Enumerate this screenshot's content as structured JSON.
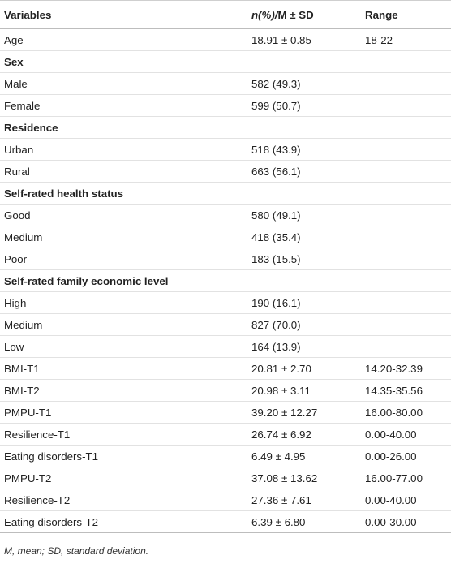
{
  "table": {
    "header": [
      "Variables",
      "n(%)/M ± SD",
      "Range"
    ],
    "rows": [
      {
        "cells": [
          "Age",
          "18.91 ± 0.85",
          "18-22"
        ]
      },
      {
        "cells": [
          "Sex"
        ],
        "section": true
      },
      {
        "cells": [
          "Male",
          "582 (49.3)"
        ]
      },
      {
        "cells": [
          "Female",
          "599 (50.7)"
        ]
      },
      {
        "cells": [
          "Residence"
        ],
        "section": true
      },
      {
        "cells": [
          "Urban",
          "518 (43.9)"
        ]
      },
      {
        "cells": [
          "Rural",
          "663 (56.1)"
        ]
      },
      {
        "cells": [
          "Self-rated health status"
        ],
        "section": true
      },
      {
        "cells": [
          "Good",
          "580 (49.1)"
        ]
      },
      {
        "cells": [
          "Medium",
          "418 (35.4)"
        ]
      },
      {
        "cells": [
          "Poor",
          "183 (15.5)"
        ]
      },
      {
        "cells": [
          "Self-rated family economic level"
        ],
        "section": true
      },
      {
        "cells": [
          "High",
          "190 (16.1)"
        ]
      },
      {
        "cells": [
          "Medium",
          "827 (70.0)"
        ]
      },
      {
        "cells": [
          "Low",
          "164 (13.9)"
        ]
      },
      {
        "cells": [
          "BMI-T1",
          "20.81 ± 2.70",
          "14.20-32.39"
        ]
      },
      {
        "cells": [
          "BMI-T2",
          "20.98 ± 3.11",
          "14.35-35.56"
        ]
      },
      {
        "cells": [
          "PMPU-T1",
          "39.20 ± 12.27",
          "16.00-80.00"
        ]
      },
      {
        "cells": [
          "Resilience-T1",
          "26.74 ± 6.92",
          "0.00-40.00"
        ]
      },
      {
        "cells": [
          "Eating disorders-T1",
          "6.49 ± 4.95",
          "0.00-26.00"
        ]
      },
      {
        "cells": [
          "PMPU-T2",
          "37.08 ± 13.62",
          "16.00-77.00"
        ]
      },
      {
        "cells": [
          "Resilience-T2",
          "27.36 ± 7.61",
          "0.00-40.00"
        ]
      },
      {
        "cells": [
          "Eating disorders-T2",
          "6.39 ± 6.80",
          "0.00-30.00"
        ]
      }
    ],
    "footnote": "M, mean; SD, standard deviation."
  }
}
